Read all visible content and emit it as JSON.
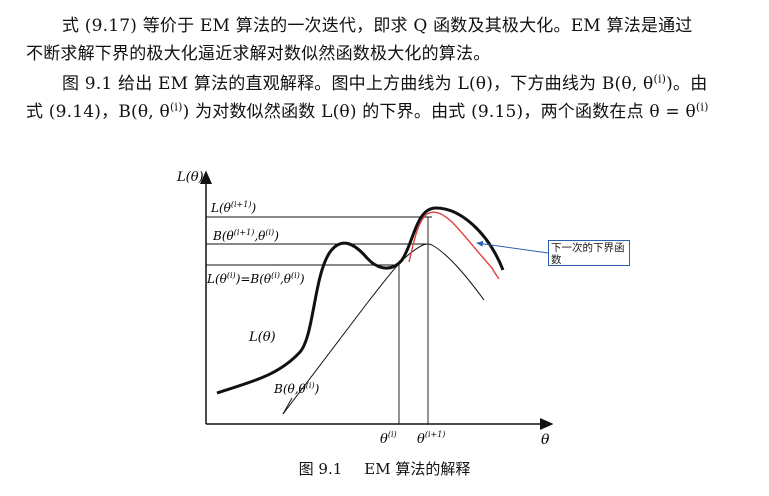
{
  "paragraph1": {
    "line1": "式 (9.17) 等价于 EM 算法的一次迭代，即求 Q 函数及其极大化。EM 算法是通过",
    "line2": "不断求解下界的极大化逼近求解对数似然函数极大化的算法。"
  },
  "paragraph2": {
    "line1_a": "图 9.1 给出 EM 算法的直观解释。图中上方曲线为 L(θ)，下方曲线为 B(θ, θ",
    "line1_sup": "(i)",
    "line1_b": ")。由",
    "line2_a": "式 (9.14)，B(θ, θ",
    "line2_sup1": "(i)",
    "line2_b": ") 为对数似然函数 L(θ) 的下界。由式 (9.15)，两个函数在点 θ = θ",
    "line2_sup2": "(i)"
  },
  "figure": {
    "y_axis_label": "L(θ)",
    "x_axis_label": "θ",
    "label_L_next": "L(θ",
    "label_L_next_sup": "(i+1)",
    "label_B_next": "B(θ",
    "label_B_next_sup": "(i+1)",
    "label_B_next_mid": ",θ",
    "label_B_next_sup2": "(i)",
    "label_equal_a": "L(θ",
    "label_equal_sup1": "(i)",
    "label_equal_b": ")=B(θ",
    "label_equal_sup2": "(i)",
    "label_equal_c": ",θ",
    "label_equal_sup3": "(i)",
    "label_curve_L": "L(θ)",
    "label_curve_B_a": "B(θ,θ",
    "label_curve_B_sup": "(i)",
    "tick_theta_i": "θ",
    "tick_theta_i_sup": "(i)",
    "tick_theta_next": "θ",
    "tick_theta_next_sup": "(i+1)",
    "annotation": "下一次的下界函数",
    "colors": {
      "curve": "#111111",
      "next_lower_bound": "#e34040",
      "annotation": "#2c5fb0"
    }
  },
  "caption": {
    "number": "图 9.1",
    "text": "EM 算法的解释"
  }
}
